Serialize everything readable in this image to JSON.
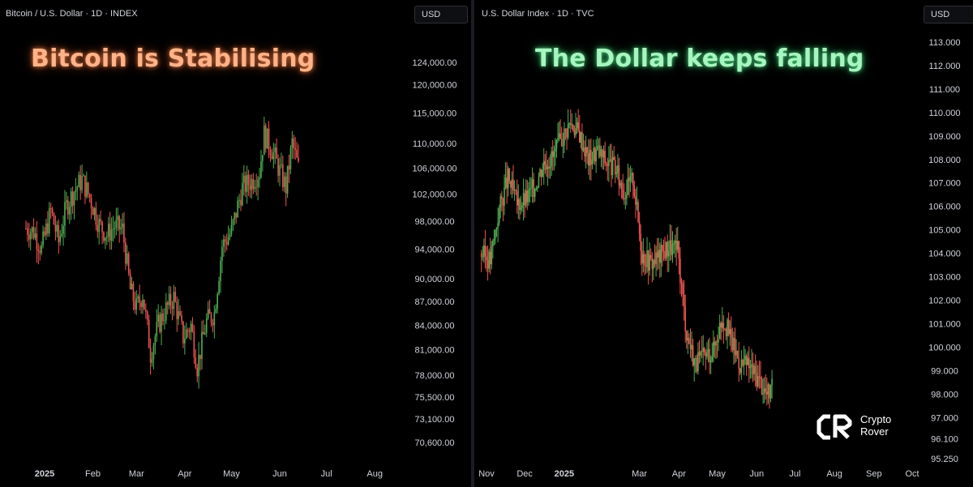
{
  "left_panel": {
    "symbol": "Bitcoin / U.S. Dollar · 1D · INDEX",
    "currency": "USD",
    "headline": "Bitcoin is Stabilising",
    "headline_color": "#ffb38a"
  },
  "right_panel": {
    "symbol": "U.S. Dollar Index · 1D · TVC",
    "currency": "USD",
    "headline": "The Dollar keeps falling",
    "headline_color": "#a8f5c0"
  },
  "logo": {
    "line1": "Crypto",
    "line2": "Rover"
  },
  "colors": {
    "up": "#4caf50",
    "down": "#ef5350",
    "background": "#000000"
  },
  "chart_data": [
    {
      "type": "candlestick",
      "title": "Bitcoin / U.S. Dollar · 1D · INDEX",
      "y_scale": "log",
      "y_ticks": [
        "124,000.00",
        "120,000.00",
        "115,000.00",
        "110,000.00",
        "106,000.00",
        "102,000.00",
        "98,000.00",
        "94,000.00",
        "90,000.00",
        "87,000.00",
        "84,000.00",
        "81,000.00",
        "78,000.00",
        "75,500.00",
        "73,100.00",
        "70,600.00"
      ],
      "x_ticks": [
        "2025",
        "Feb",
        "Mar",
        "Apr",
        "May",
        "Jun",
        "Jul",
        "Aug"
      ],
      "x_tick_bold": [
        "2025"
      ],
      "series": [
        {
          "x": [
            "2024-12-20",
            "2024-12-25",
            "2024-12-30",
            "2025-01-05",
            "2025-01-10",
            "2025-01-15",
            "2025-01-20",
            "2025-01-25",
            "2025-01-30",
            "2025-02-05",
            "2025-02-10",
            "2025-02-15",
            "2025-02-20",
            "2025-02-25",
            "2025-03-01",
            "2025-03-05",
            "2025-03-10",
            "2025-03-15",
            "2025-03-20",
            "2025-03-25",
            "2025-03-31",
            "2025-04-05",
            "2025-04-09",
            "2025-04-15",
            "2025-04-20",
            "2025-04-25",
            "2025-05-01",
            "2025-05-08",
            "2025-05-14",
            "2025-05-19",
            "2025-05-22",
            "2025-05-27",
            "2025-06-01",
            "2025-06-05",
            "2025-06-09",
            "2025-06-13"
          ],
          "close": [
            97000,
            96500,
            94000,
            99500,
            95000,
            100200,
            102500,
            104200,
            101500,
            97500,
            96000,
            97300,
            96800,
            88500,
            86200,
            88000,
            80500,
            84000,
            86000,
            87500,
            82500,
            84000,
            79000,
            84500,
            85500,
            94500,
            96500,
            103000,
            104000,
            105500,
            111500,
            109000,
            105500,
            103000,
            110000,
            106000
          ]
        }
      ]
    },
    {
      "type": "candlestick",
      "title": "U.S. Dollar Index · 1D · TVC",
      "y_scale": "linear",
      "y_ticks": [
        "113.000",
        "112.000",
        "111.000",
        "110.000",
        "109.000",
        "108.000",
        "107.000",
        "106.000",
        "105.000",
        "104.000",
        "103.000",
        "102.000",
        "101.000",
        "100.000",
        "99.000",
        "98.000",
        "97.000",
        "96.100",
        "95.250"
      ],
      "x_ticks": [
        "Nov",
        "Dec",
        "2025",
        "Mar",
        "Apr",
        "May",
        "Jun",
        "Jul",
        "Aug",
        "Sep",
        "Oct"
      ],
      "x_tick_bold": [
        "2025"
      ],
      "series": [
        {
          "x": [
            "2024-10-28",
            "2024-11-04",
            "2024-11-11",
            "2024-11-18",
            "2024-11-25",
            "2024-12-02",
            "2024-12-09",
            "2024-12-16",
            "2024-12-23",
            "2024-12-30",
            "2025-01-06",
            "2025-01-13",
            "2025-01-20",
            "2025-01-27",
            "2025-02-03",
            "2025-02-10",
            "2025-02-17",
            "2025-02-24",
            "2025-03-03",
            "2025-03-10",
            "2025-03-17",
            "2025-03-24",
            "2025-03-31",
            "2025-04-07",
            "2025-04-14",
            "2025-04-21",
            "2025-04-28",
            "2025-05-05",
            "2025-05-12",
            "2025-05-19",
            "2025-05-26",
            "2025-06-02",
            "2025-06-09",
            "2025-06-13"
          ],
          "close": [
            104.0,
            103.7,
            105.9,
            107.2,
            106.1,
            106.3,
            106.9,
            107.9,
            108.1,
            108.9,
            109.6,
            109.1,
            108.0,
            108.4,
            107.9,
            107.6,
            106.6,
            107.2,
            104.0,
            103.6,
            103.9,
            104.3,
            104.1,
            100.6,
            99.3,
            99.6,
            99.9,
            101.3,
            100.3,
            99.3,
            99.2,
            98.7,
            98.0,
            98.2
          ]
        }
      ]
    }
  ]
}
